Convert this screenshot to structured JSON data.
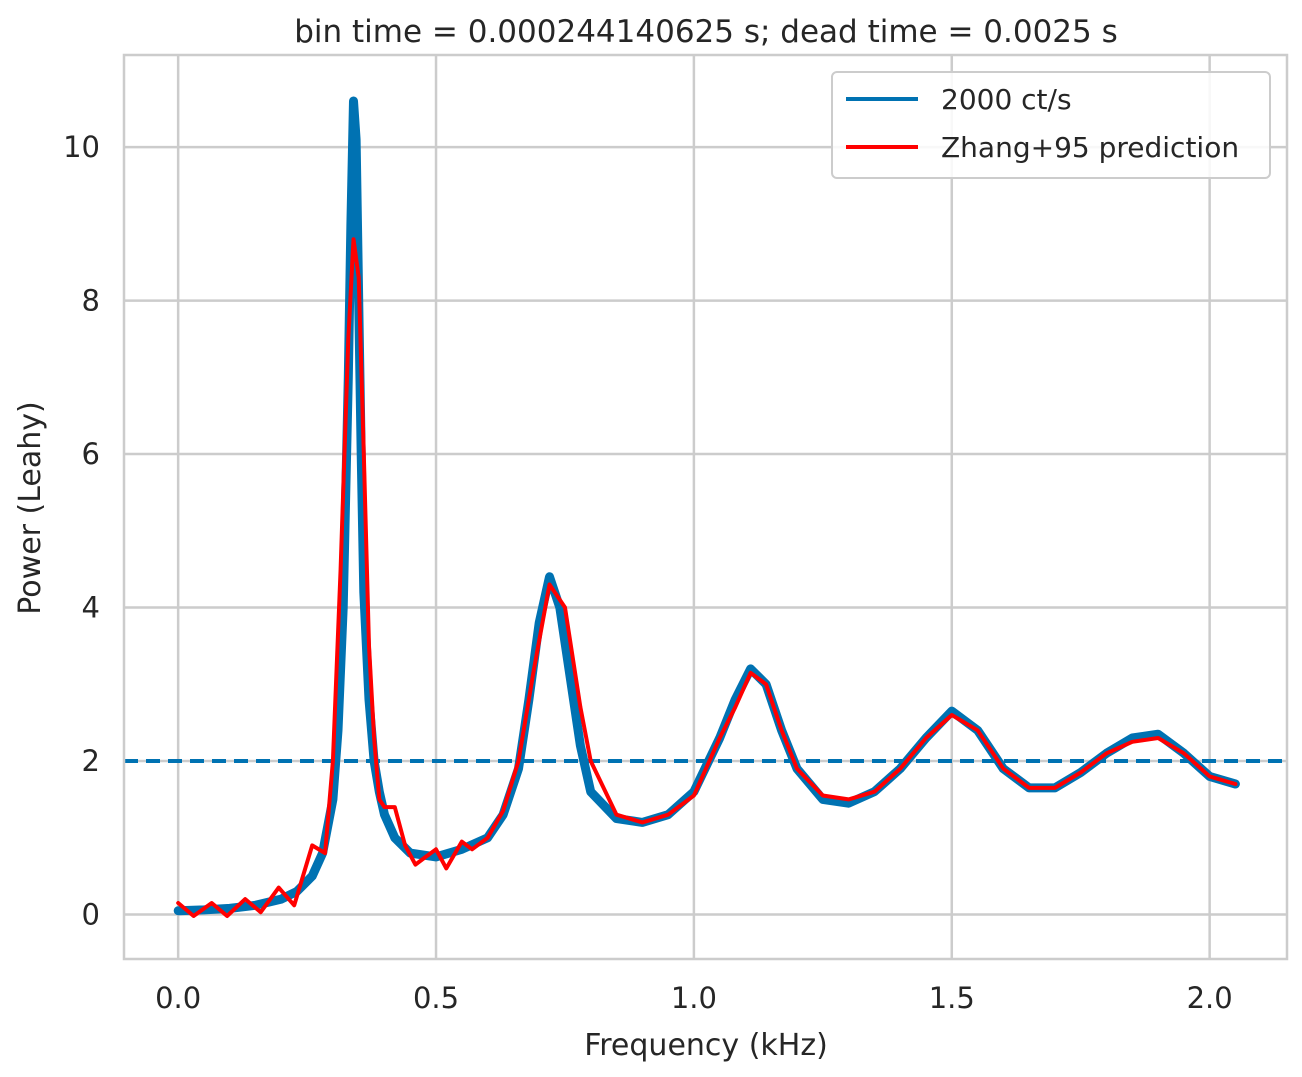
{
  "chart_data": {
    "type": "line",
    "title": "bin time = 0.000244140625 s; dead time = 0.0025 s",
    "xlabel": "Frequency (kHz)",
    "ylabel": "Power (Leahy)",
    "xlim": [
      -0.105,
      2.15
    ],
    "ylim": [
      -0.58,
      11.2
    ],
    "xticks": [
      0.0,
      0.5,
      1.0,
      1.5,
      2.0
    ],
    "xtick_labels": [
      "0.0",
      "0.5",
      "1.0",
      "1.5",
      "2.0"
    ],
    "yticks": [
      0,
      2,
      4,
      6,
      8,
      10
    ],
    "ytick_labels": [
      "0",
      "2",
      "4",
      "6",
      "8",
      "10"
    ],
    "grid": true,
    "legend_position": "top-right",
    "reference_line": {
      "y": 2,
      "style": "dashed",
      "color": "#0072b2"
    },
    "series": [
      {
        "name": "2000 ct/s",
        "color": "#0072b2",
        "x": [
          0.0,
          0.05,
          0.1,
          0.15,
          0.2,
          0.23,
          0.26,
          0.28,
          0.3,
          0.31,
          0.32,
          0.33,
          0.335,
          0.34,
          0.345,
          0.35,
          0.355,
          0.36,
          0.37,
          0.38,
          0.39,
          0.4,
          0.42,
          0.45,
          0.5,
          0.55,
          0.6,
          0.63,
          0.66,
          0.68,
          0.7,
          0.72,
          0.74,
          0.76,
          0.78,
          0.8,
          0.85,
          0.9,
          0.95,
          1.0,
          1.05,
          1.08,
          1.11,
          1.14,
          1.17,
          1.2,
          1.25,
          1.3,
          1.35,
          1.4,
          1.45,
          1.5,
          1.55,
          1.6,
          1.65,
          1.7,
          1.75,
          1.8,
          1.85,
          1.9,
          1.95,
          2.0,
          2.05
        ],
        "values": [
          0.05,
          0.06,
          0.08,
          0.12,
          0.2,
          0.3,
          0.5,
          0.8,
          1.5,
          2.4,
          4.0,
          7.0,
          9.0,
          10.6,
          10.1,
          8.0,
          6.0,
          4.2,
          2.8,
          2.0,
          1.6,
          1.3,
          1.0,
          0.8,
          0.75,
          0.85,
          1.0,
          1.3,
          1.9,
          2.8,
          3.8,
          4.4,
          4.0,
          3.1,
          2.2,
          1.6,
          1.25,
          1.2,
          1.3,
          1.6,
          2.3,
          2.8,
          3.2,
          3.0,
          2.4,
          1.9,
          1.5,
          1.45,
          1.6,
          1.9,
          2.3,
          2.65,
          2.4,
          1.9,
          1.65,
          1.65,
          1.85,
          2.1,
          2.3,
          2.35,
          2.1,
          1.8,
          1.7
        ]
      },
      {
        "name": "Zhang+95 prediction",
        "color": "#ff0000",
        "x": [
          0.0,
          0.03,
          0.065,
          0.095,
          0.13,
          0.16,
          0.195,
          0.225,
          0.26,
          0.285,
          0.3,
          0.315,
          0.33,
          0.34,
          0.35,
          0.36,
          0.37,
          0.38,
          0.39,
          0.4,
          0.42,
          0.44,
          0.46,
          0.48,
          0.5,
          0.52,
          0.55,
          0.57,
          0.6,
          0.63,
          0.66,
          0.69,
          0.72,
          0.75,
          0.78,
          0.8,
          0.85,
          0.9,
          0.95,
          1.0,
          1.05,
          1.08,
          1.11,
          1.14,
          1.17,
          1.2,
          1.25,
          1.3,
          1.35,
          1.4,
          1.45,
          1.5,
          1.55,
          1.6,
          1.65,
          1.7,
          1.75,
          1.8,
          1.85,
          1.9,
          1.95,
          2.0,
          2.05
        ],
        "values": [
          0.15,
          -0.02,
          0.15,
          -0.02,
          0.2,
          0.03,
          0.35,
          0.12,
          0.9,
          0.8,
          2.0,
          4.5,
          7.5,
          8.8,
          8.3,
          6.0,
          3.5,
          2.3,
          1.5,
          1.4,
          1.4,
          0.9,
          0.65,
          0.75,
          0.85,
          0.6,
          0.95,
          0.85,
          1.0,
          1.35,
          2.0,
          3.2,
          4.3,
          4.0,
          2.7,
          2.0,
          1.3,
          1.2,
          1.3,
          1.55,
          2.3,
          2.7,
          3.15,
          3.0,
          2.4,
          1.9,
          1.55,
          1.5,
          1.6,
          1.9,
          2.3,
          2.6,
          2.4,
          1.9,
          1.65,
          1.65,
          1.85,
          2.1,
          2.25,
          2.3,
          2.1,
          1.8,
          1.7
        ]
      }
    ]
  }
}
